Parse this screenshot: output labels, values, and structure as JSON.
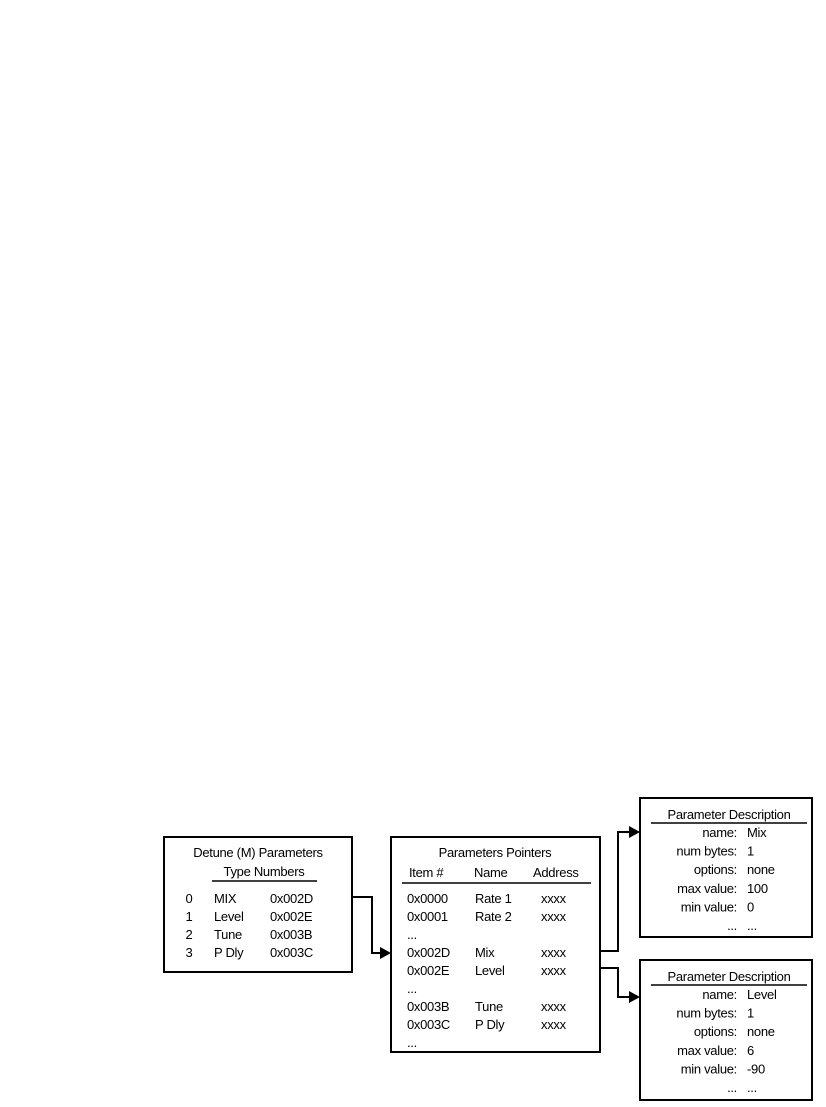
{
  "type_box": {
    "title": "Detune (M) Parameters",
    "subtitle": "Type Numbers",
    "rows": [
      {
        "index": "0",
        "name": "MIX",
        "type": "0x002D"
      },
      {
        "index": "1",
        "name": "Level",
        "type": "0x002E"
      },
      {
        "index": "2",
        "name": "Tune",
        "type": "0x003B"
      },
      {
        "index": "3",
        "name": "P Dly",
        "type": "0x003C"
      }
    ]
  },
  "pointer_box": {
    "title": "Parameters Pointers",
    "headers": [
      "Item #",
      "Name",
      "Address"
    ],
    "rows": [
      {
        "item": "0x0000",
        "name": "Rate 1",
        "address": "xxxx"
      },
      {
        "item": "0x0001",
        "name": "Rate 2",
        "address": "xxxx"
      },
      {
        "item": "...",
        "name": "",
        "address": ""
      },
      {
        "item": "0x002D",
        "name": "Mix",
        "address": "xxxx"
      },
      {
        "item": "0x002E",
        "name": "Level",
        "address": "xxxx"
      },
      {
        "item": "...",
        "name": "",
        "address": ""
      },
      {
        "item": "0x003B",
        "name": "Tune",
        "address": "xxxx"
      },
      {
        "item": "0x003C",
        "name": "P Dly",
        "address": "xxxx"
      },
      {
        "item": "...",
        "name": "",
        "address": ""
      }
    ]
  },
  "descriptions": [
    {
      "title": "Parameter Description",
      "fields": [
        {
          "label": "name:",
          "value": "Mix"
        },
        {
          "label": "num bytes:",
          "value": "1"
        },
        {
          "label": "options:",
          "value": "none"
        },
        {
          "label": "max value:",
          "value": "100"
        },
        {
          "label": "min value:",
          "value": "0"
        },
        {
          "label": "...",
          "value": "..."
        }
      ]
    },
    {
      "title": "Parameter Description",
      "fields": [
        {
          "label": "name:",
          "value": "Level"
        },
        {
          "label": "num bytes:",
          "value": "1"
        },
        {
          "label": "options:",
          "value": "none"
        },
        {
          "label": "max value:",
          "value": "6"
        },
        {
          "label": "min value:",
          "value": "-90"
        },
        {
          "label": "...",
          "value": "..."
        }
      ]
    }
  ]
}
